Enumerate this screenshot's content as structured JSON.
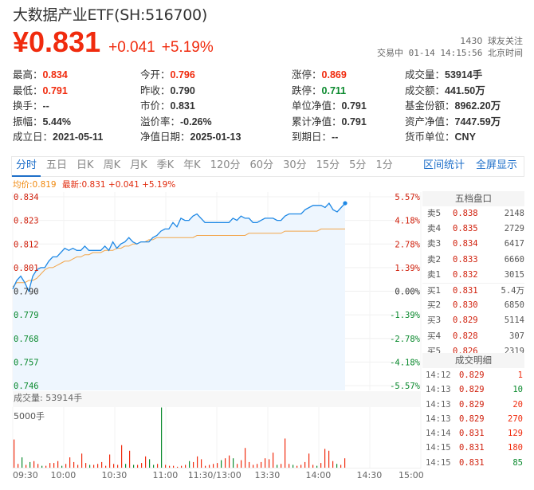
{
  "header": {
    "title": "大数据产业ETF(SH:516700)",
    "price": "¥0.831",
    "change": "+0.041",
    "change_pct": "+5.19%",
    "followers_count": "1430",
    "followers_label": "球友关注",
    "status": "交易中",
    "datetime": "01-14 14:15:56",
    "timezone_label": "北京时间"
  },
  "quote": [
    [
      {
        "label": "最高：",
        "value": "0.834",
        "color": "red"
      },
      {
        "label": "今开：",
        "value": "0.796",
        "color": "red"
      },
      {
        "label": "涨停：",
        "value": "0.869",
        "color": "red"
      },
      {
        "label": "成交量：",
        "value": "53914手",
        "color": ""
      }
    ],
    [
      {
        "label": "最低：",
        "value": "0.791",
        "color": "red"
      },
      {
        "label": "昨收：",
        "value": "0.790",
        "color": ""
      },
      {
        "label": "跌停：",
        "value": "0.711",
        "color": "green"
      },
      {
        "label": "成交额：",
        "value": "441.50万",
        "color": ""
      }
    ],
    [
      {
        "label": "换手：",
        "value": "--",
        "color": ""
      },
      {
        "label": "市价：",
        "value": "0.831",
        "color": ""
      },
      {
        "label": "单位净值：",
        "value": "0.791",
        "color": ""
      },
      {
        "label": "基金份额：",
        "value": "8962.20万",
        "color": ""
      }
    ],
    [
      {
        "label": "振幅：",
        "value": "5.44%",
        "color": ""
      },
      {
        "label": "溢价率：",
        "value": "-0.26%",
        "color": ""
      },
      {
        "label": "累计净值：",
        "value": "0.791",
        "color": ""
      },
      {
        "label": "资产净值：",
        "value": "7447.59万",
        "color": ""
      }
    ],
    [
      {
        "label": "成立日：",
        "value": "2021-05-11",
        "color": ""
      },
      {
        "label": "净值日期：",
        "value": "2025-01-13",
        "color": ""
      },
      {
        "label": "到期日：",
        "value": "--",
        "color": ""
      },
      {
        "label": "货币单位：",
        "value": "CNY",
        "color": ""
      }
    ]
  ],
  "tabs": {
    "items": [
      "分时",
      "五日",
      "日K",
      "周K",
      "月K",
      "季K",
      "年K",
      "120分",
      "60分",
      "30分",
      "15分",
      "5分",
      "1分"
    ],
    "active": 0,
    "right": [
      "区间统计",
      "全屏显示"
    ]
  },
  "legend": {
    "avg_label": "均价:",
    "avg_value": "0.819",
    "latest_label": "最新:",
    "latest_value": "0.831 +0.041 +5.19%"
  },
  "colors": {
    "up": "#f02b0e",
    "down": "#0b8a2e",
    "price_line": "#1e88e5",
    "avg_line": "#f2a54a",
    "area_fill": "#eef6fe",
    "accent": "#1e6fc9"
  },
  "order_book": {
    "title": "五档盘口",
    "asks": [
      {
        "label": "卖5",
        "price": "0.838",
        "vol": "2148"
      },
      {
        "label": "卖4",
        "price": "0.835",
        "vol": "2729"
      },
      {
        "label": "卖3",
        "price": "0.834",
        "vol": "6417"
      },
      {
        "label": "卖2",
        "price": "0.833",
        "vol": "6660"
      },
      {
        "label": "卖1",
        "price": "0.832",
        "vol": "3015"
      }
    ],
    "bids": [
      {
        "label": "买1",
        "price": "0.831",
        "vol": "5.4万"
      },
      {
        "label": "买2",
        "price": "0.830",
        "vol": "6850"
      },
      {
        "label": "买3",
        "price": "0.829",
        "vol": "5114"
      },
      {
        "label": "买4",
        "price": "0.828",
        "vol": "307"
      },
      {
        "label": "买5",
        "price": "0.826",
        "vol": "2319"
      }
    ]
  },
  "trades": {
    "title": "成交明细",
    "rows": [
      {
        "time": "14:12",
        "price": "0.829",
        "vol": "1",
        "dir": "red"
      },
      {
        "time": "14:13",
        "price": "0.829",
        "vol": "10",
        "dir": "green"
      },
      {
        "time": "14:13",
        "price": "0.829",
        "vol": "20",
        "dir": "red"
      },
      {
        "time": "14:13",
        "price": "0.829",
        "vol": "270",
        "dir": "red"
      },
      {
        "time": "14:14",
        "price": "0.831",
        "vol": "129",
        "dir": "red"
      },
      {
        "time": "14:15",
        "price": "0.831",
        "vol": "180",
        "dir": "red"
      },
      {
        "time": "14:15",
        "price": "0.831",
        "vol": "85",
        "dir": "green"
      }
    ]
  },
  "volume": {
    "label": "成交量: 53914手",
    "scale_label": "5000手"
  },
  "chart_data": {
    "type": "line",
    "title": "分时",
    "prev_close": 0.79,
    "y_ticks_left": [
      "0.834",
      "0.823",
      "0.812",
      "0.801",
      "0.790",
      "0.779",
      "0.768",
      "0.757",
      "0.746"
    ],
    "y_ticks_right": [
      "5.57%",
      "4.18%",
      "2.78%",
      "1.39%",
      "0.00%",
      "-1.39%",
      "-2.78%",
      "-4.18%",
      "-5.57%"
    ],
    "x_ticks": [
      "09:30",
      "10:00",
      "10:30",
      "11:00",
      "11:30/13:00",
      "13:30",
      "14:00",
      "14:30",
      "15:00"
    ],
    "ylim": [
      0.746,
      0.834
    ],
    "series": [
      {
        "name": "最新",
        "values": [
          0.791,
          0.795,
          0.797,
          0.794,
          0.79,
          0.797,
          0.8,
          0.801,
          0.801,
          0.804,
          0.806,
          0.806,
          0.808,
          0.81,
          0.809,
          0.81,
          0.809,
          0.809,
          0.811,
          0.809,
          0.809,
          0.809,
          0.809,
          0.811,
          0.809,
          0.813,
          0.81,
          0.812,
          0.813,
          0.815,
          0.813,
          0.812,
          0.813,
          0.813,
          0.813,
          0.815,
          0.816,
          0.818,
          0.819,
          0.819,
          0.822,
          0.82,
          0.824,
          0.823,
          0.823,
          0.825,
          0.826,
          0.824,
          0.822,
          0.822,
          0.822,
          0.822,
          0.822,
          0.822,
          0.822,
          0.824,
          0.823,
          0.825,
          0.824,
          0.824,
          0.822,
          0.822,
          0.823,
          0.824,
          0.824,
          0.824,
          0.823,
          0.823,
          0.825,
          0.826,
          0.826,
          0.826,
          0.826,
          0.828,
          0.829,
          0.83,
          0.83,
          0.83,
          0.829,
          0.831,
          0.828,
          0.827,
          0.829,
          0.831
        ]
      },
      {
        "name": "均价",
        "values": [
          0.792,
          0.794,
          0.794,
          0.794,
          0.795,
          0.795,
          0.796,
          0.798,
          0.8,
          0.801,
          0.801,
          0.802,
          0.803,
          0.804,
          0.804,
          0.805,
          0.806,
          0.806,
          0.807,
          0.807,
          0.808,
          0.808,
          0.808,
          0.809,
          0.809,
          0.809,
          0.81,
          0.81,
          0.811,
          0.811,
          0.812,
          0.812,
          0.813,
          0.813,
          0.814,
          0.814,
          0.815,
          0.815,
          0.815,
          0.815,
          0.815,
          0.815,
          0.815,
          0.815,
          0.815,
          0.815,
          0.816,
          0.816,
          0.816,
          0.816,
          0.816,
          0.816,
          0.816,
          0.816,
          0.816,
          0.816,
          0.816,
          0.816,
          0.816,
          0.817,
          0.817,
          0.817,
          0.817,
          0.817,
          0.817,
          0.817,
          0.817,
          0.817,
          0.818,
          0.818,
          0.818,
          0.818,
          0.818,
          0.818,
          0.818,
          0.818,
          0.818,
          0.819,
          0.819,
          0.819,
          0.819,
          0.819,
          0.819,
          0.819
        ]
      }
    ],
    "volume_ylim": [
      0,
      10000
    ],
    "legend": [
      "均价",
      "最新"
    ]
  }
}
